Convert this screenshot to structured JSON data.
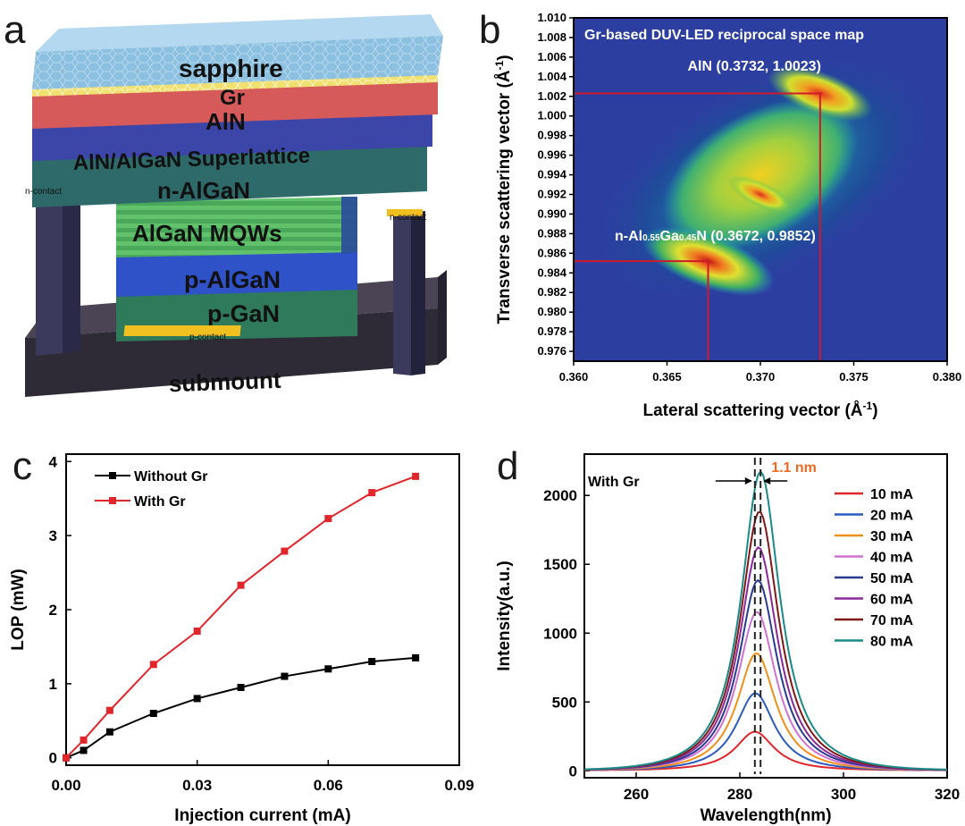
{
  "panel_labels": {
    "a": "a",
    "b": "b",
    "c": "c",
    "d": "d"
  },
  "panel_a": {
    "layers": {
      "sapphire": "sapphire",
      "gr": "Gr",
      "aln": "AlN",
      "superlattice": "AlN/AlGaN Superlattice",
      "n_algan": "n-AlGaN",
      "mqws": "AlGaN MQWs",
      "p_algan": "p-AlGaN",
      "p_gan": "p-GaN",
      "submount": "submount"
    },
    "n_contact_left": "n-contact",
    "n_contact_right": "n-contact",
    "p_contact": "p-contact",
    "colors": {
      "sapphire": "#8cc0e0",
      "aln": "#d65a5a",
      "superlattice": "#3c46a8",
      "n_algan": "#2e6a6a",
      "mqws": "#5fbf6a",
      "p_algan": "#2f52c8",
      "p_gan": "#2e7a5a",
      "submount": "#3a3444",
      "contact": "#f0c020"
    }
  },
  "chart_data": [
    {
      "type": "heatmap",
      "panel": "b",
      "title": "Gr-based DUV-LED reciprocal space map",
      "xlabel": "Lateral scattering vector (Å",
      "xlabel_sup": "-1",
      "xlabel_end": ")",
      "ylabel": "Transverse scattering vector (Å",
      "ylabel_sup": "-1",
      "ylabel_end": ")",
      "xlim": [
        0.36,
        0.38
      ],
      "ylim": [
        0.975,
        1.01
      ],
      "xticks": [
        "0.360",
        "0.365",
        "0.370",
        "0.375",
        "0.380"
      ],
      "xtick_values": [
        0.36,
        0.365,
        0.37,
        0.375,
        0.38
      ],
      "yticks": [
        "0.976",
        "0.978",
        "0.980",
        "0.982",
        "0.984",
        "0.986",
        "0.988",
        "0.990",
        "0.992",
        "0.994",
        "0.996",
        "0.998",
        "1.000",
        "1.002",
        "1.004",
        "1.006",
        "1.008",
        "1.010"
      ],
      "ytick_values": [
        0.976,
        0.978,
        0.98,
        0.982,
        0.984,
        0.986,
        0.988,
        0.99,
        0.992,
        0.994,
        0.996,
        0.998,
        1.0,
        1.002,
        1.004,
        1.006,
        1.008,
        1.01
      ],
      "peaks": [
        {
          "name": "AlN",
          "x": 0.3732,
          "y": 1.0023,
          "label": "AlN (0.3732, 1.0023)"
        },
        {
          "name": "n-AlGaN",
          "x": 0.3672,
          "y": 0.9852,
          "label_prefix": "n-Al",
          "sub1": "0.55",
          "label_mid": "Ga",
          "sub2": "0.45",
          "label_suffix": "N (0.3672, 0.9852)"
        },
        {
          "name": "center",
          "x": 0.37,
          "y": 0.992
        }
      ],
      "colors": {
        "background": "#2c3fa0",
        "marker": "#d01a2a"
      }
    },
    {
      "type": "line",
      "panel": "c",
      "xlabel": "Injection current (mA)",
      "ylabel": "LOP (mW)",
      "xlim": [
        0.0,
        0.09
      ],
      "ylim": [
        -0.1,
        4.1
      ],
      "xticks": [
        "0.00",
        "0.03",
        "0.06",
        "0.09"
      ],
      "xtick_values": [
        0.0,
        0.03,
        0.06,
        0.09
      ],
      "yticks": [
        "0",
        "1",
        "2",
        "3",
        "4"
      ],
      "ytick_values": [
        0,
        1,
        2,
        3,
        4
      ],
      "x": [
        0.0,
        0.004,
        0.01,
        0.02,
        0.03,
        0.04,
        0.05,
        0.06,
        0.07,
        0.08
      ],
      "series": [
        {
          "name": "Without Gr",
          "color": "#000000",
          "values": [
            0.0,
            0.1,
            0.35,
            0.6,
            0.8,
            0.95,
            1.1,
            1.2,
            1.3,
            1.35
          ]
        },
        {
          "name": "With Gr",
          "color": "#e0262b",
          "values": [
            0.0,
            0.24,
            0.64,
            1.26,
            1.71,
            2.33,
            2.79,
            3.23,
            3.58,
            3.8
          ]
        }
      ]
    },
    {
      "type": "line",
      "panel": "d",
      "xlabel": "Wavelength(nm)",
      "ylabel": "Intensity(a.u.)",
      "annotation": "With Gr",
      "shift_label": "1.1 nm",
      "shift_color": "#f06a20",
      "xlim": [
        250,
        320
      ],
      "ylim": [
        -50,
        2300
      ],
      "xticks": [
        "260",
        "280",
        "300",
        "320"
      ],
      "xtick_values": [
        260,
        280,
        300,
        320
      ],
      "yticks": [
        "0",
        "500",
        "1000",
        "1500",
        "2000"
      ],
      "ytick_values": [
        0,
        500,
        1000,
        1500,
        2000
      ],
      "dashed_lines": [
        282.9,
        284.0
      ],
      "series": [
        {
          "name": "10 mA",
          "color": "#e0262b",
          "peak_x": 282.9,
          "peak": 280
        },
        {
          "name": "20 mA",
          "color": "#2a5cc0",
          "peak_x": 283.0,
          "peak": 560
        },
        {
          "name": "30 mA",
          "color": "#f0901a",
          "peak_x": 283.2,
          "peak": 850
        },
        {
          "name": "40 mA",
          "color": "#d070d0",
          "peak_x": 283.3,
          "peak": 1150
        },
        {
          "name": "50 mA",
          "color": "#2a3a90",
          "peak_x": 283.5,
          "peak": 1380
        },
        {
          "name": "60 mA",
          "color": "#8a2a9a",
          "peak_x": 283.6,
          "peak": 1620
        },
        {
          "name": "70 mA",
          "color": "#801818",
          "peak_x": 283.8,
          "peak": 1880
        },
        {
          "name": "80 mA",
          "color": "#1a8a88",
          "peak_x": 284.0,
          "peak": 2170
        }
      ]
    }
  ]
}
